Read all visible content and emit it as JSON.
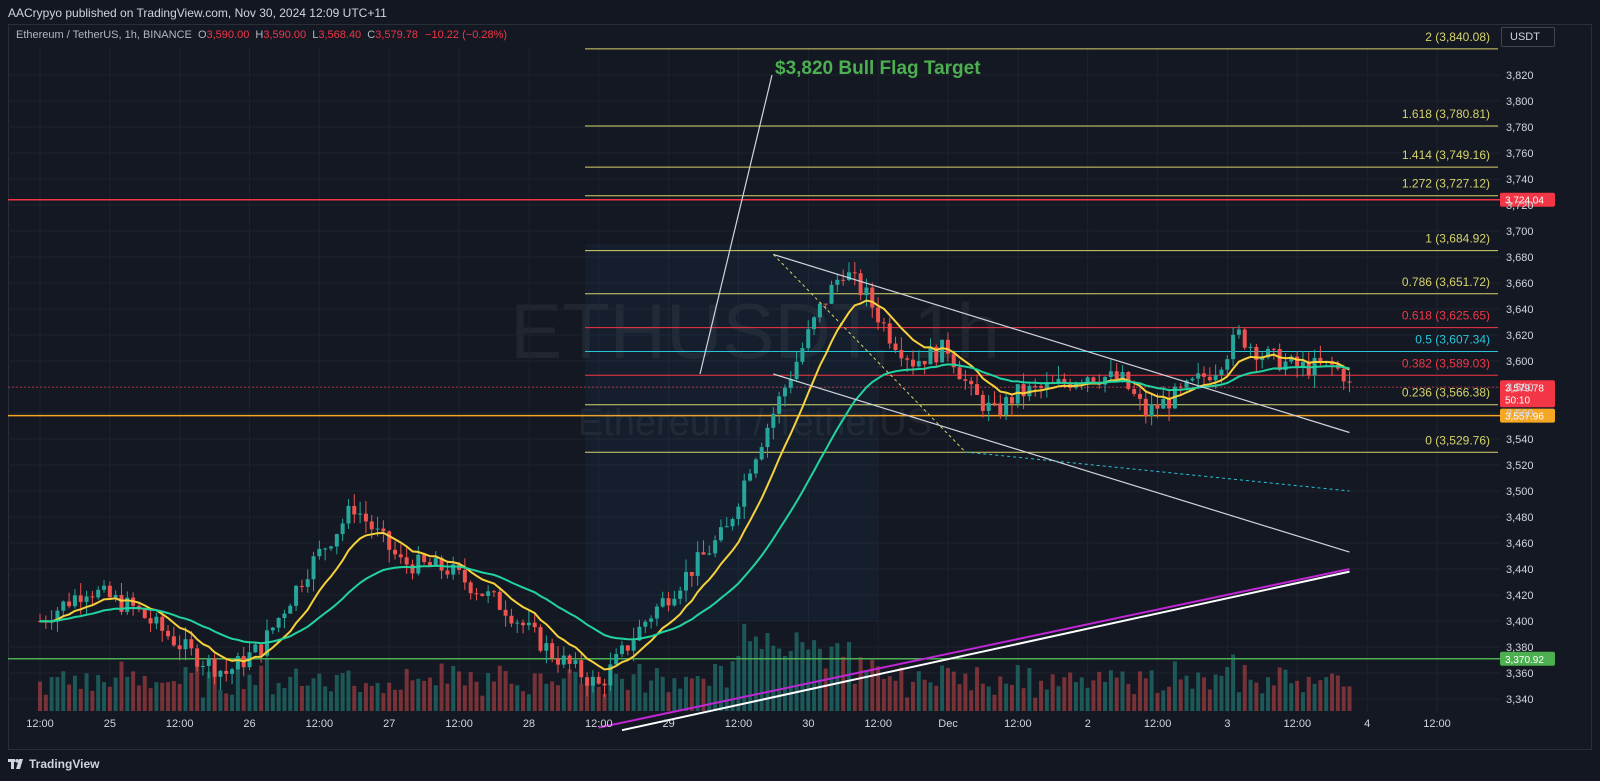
{
  "header": {
    "publisher_line": "AACrypyo published on TradingView.com, Nov 30, 2024 12:09 UTC+11"
  },
  "legend": {
    "symbol": "Ethereum / TetherUS, 1h, BINANCE",
    "open_key": "O",
    "open": "3,590.00",
    "high_key": "H",
    "high": "3,590.00",
    "low_key": "L",
    "low": "3,568.40",
    "close_key": "C",
    "close": "3,579.78",
    "change": "−10.22 (−0.28%)"
  },
  "currency_button": "USDT",
  "watermark": {
    "main": "ETHUSDT, 1h",
    "sub": "Ethereum / TetherUS"
  },
  "annotation": "$3,820 Bull Flag Target",
  "footer": {
    "brand": "TradingView"
  },
  "colors": {
    "background": "#131722",
    "up": "#26a69a",
    "down": "#ef5350",
    "ema_fast": "#f7d13b",
    "ema_slow": "#22d3a0",
    "ma_long": "#c026d3",
    "fib": "#d6d36a",
    "fib_red": "#f23645",
    "fib_teal": "#26c6da",
    "resistance": "#f23645",
    "support": "#f5a623",
    "green_level": "#4caf50",
    "annotation": "#4caf50"
  },
  "chart_data": {
    "type": "candlestick",
    "symbol": "ETHUSDT",
    "interval": "1h",
    "y_ticks": [
      3340,
      3360,
      3380,
      3400,
      3420,
      3440,
      3460,
      3480,
      3500,
      3520,
      3540,
      3560,
      3580,
      3600,
      3620,
      3640,
      3660,
      3680,
      3700,
      3720,
      3740,
      3760,
      3780,
      3800,
      3820
    ],
    "ylim": [
      3332,
      3851
    ],
    "x_ticks": [
      "12:00",
      "25",
      "12:00",
      "26",
      "12:00",
      "27",
      "12:00",
      "28",
      "12:00",
      "29",
      "12:00",
      "30",
      "12:00",
      "Dec",
      "12:00",
      "2",
      "12:00",
      "3",
      "12:00",
      "4",
      "12:00"
    ],
    "fib_levels": [
      {
        "ratio": "2",
        "price": 3840.08,
        "label": "2 (3,840.08)"
      },
      {
        "ratio": "1.618",
        "price": 3780.81,
        "label": "1.618 (3,780.81)"
      },
      {
        "ratio": "1.414",
        "price": 3749.16,
        "label": "1.414 (3,749.16)"
      },
      {
        "ratio": "1.272",
        "price": 3727.12,
        "label": "1.272 (3,727.12)"
      },
      {
        "ratio": "1",
        "price": 3684.92,
        "label": "1 (3,684.92)"
      },
      {
        "ratio": "0.786",
        "price": 3651.72,
        "label": "0.786 (3,651.72)"
      },
      {
        "ratio": "0.618",
        "price": 3625.65,
        "label": "0.618 (3,625.65)"
      },
      {
        "ratio": "0.5",
        "price": 3607.34,
        "label": "0.5 (3,607.34)"
      },
      {
        "ratio": "0.382",
        "price": 3589.03,
        "label": "0.382 (3,589.03)"
      },
      {
        "ratio": "0.236",
        "price": 3566.38,
        "label": "0.236 (3,566.38)"
      },
      {
        "ratio": "0",
        "price": 3529.76,
        "label": "0 (3,529.76)"
      }
    ],
    "horizontal_levels": [
      {
        "price": 3724.04,
        "label": "3,724.04",
        "color": "#f23645"
      },
      {
        "price": 3557.96,
        "label": "3,557.96",
        "color": "#f5a623"
      },
      {
        "price": 3370.92,
        "label": "3,370.92",
        "color": "#4caf50"
      }
    ],
    "last_price": {
      "price": 3579.78,
      "label": "3,579.78",
      "countdown": "50:10"
    },
    "target_price": 3820
  }
}
